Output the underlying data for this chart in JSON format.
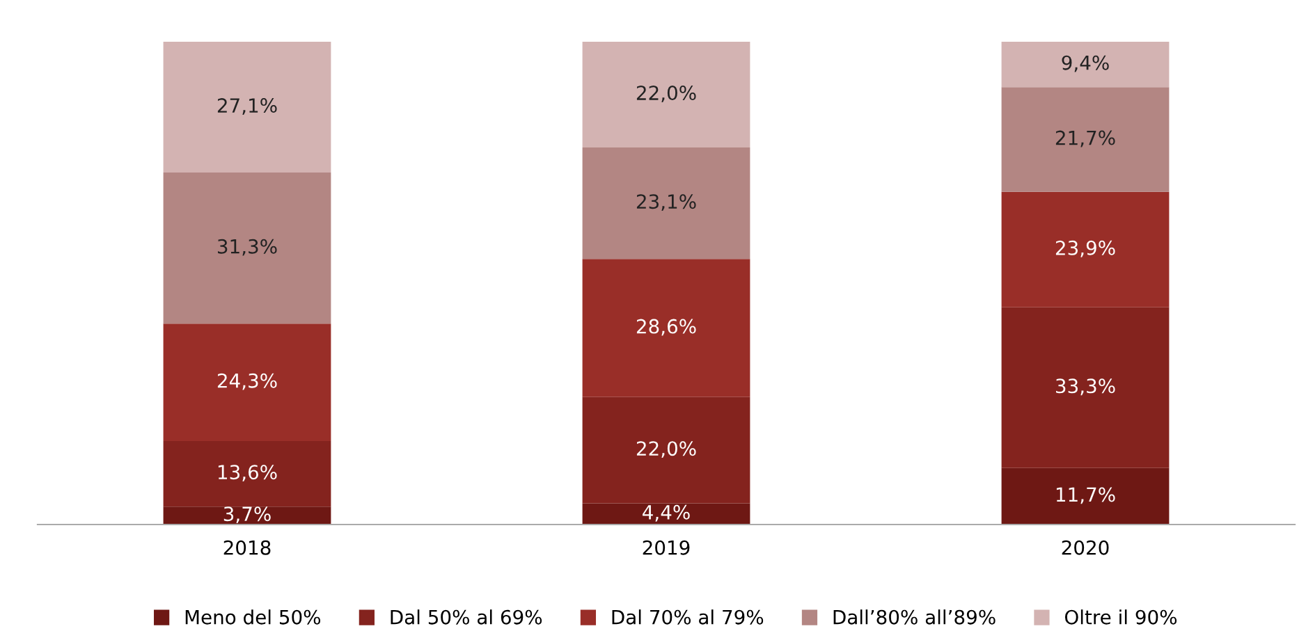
{
  "chart_data": {
    "type": "bar",
    "stacked": true,
    "categories": [
      "2018",
      "2019",
      "2020"
    ],
    "ylim": [
      0,
      100
    ],
    "tick_labels": "x",
    "grid": false,
    "legend": "bottom",
    "series": [
      {
        "name": "Meno del 50%",
        "color": "#6e1814",
        "values": [
          3.7,
          4.4,
          11.7
        ],
        "value_labels": [
          "3,7%",
          "4,4%",
          "11,7%"
        ]
      },
      {
        "name": "Dal 50% al 69%",
        "color": "#84231e",
        "values": [
          13.6,
          22.0,
          33.3
        ],
        "value_labels": [
          "13,6%",
          "22,0%",
          "33,3%"
        ]
      },
      {
        "name": "Dal 70% al 79%",
        "color": "#992e28",
        "values": [
          24.3,
          28.6,
          23.9
        ],
        "value_labels": [
          "24,3%",
          "28,6%",
          "23,9%"
        ]
      },
      {
        "name": "Dall’80% all’89%",
        "color": "#b38683",
        "values": [
          31.3,
          23.1,
          21.7
        ],
        "value_labels": [
          "31,3%",
          "23,1%",
          "21,7%"
        ]
      },
      {
        "name": "Oltre il 90%",
        "color": "#d3b3b2",
        "values": [
          27.1,
          22.0,
          9.4
        ],
        "value_labels": [
          "27,1%",
          "22,0%",
          "9,4%"
        ]
      }
    ]
  }
}
